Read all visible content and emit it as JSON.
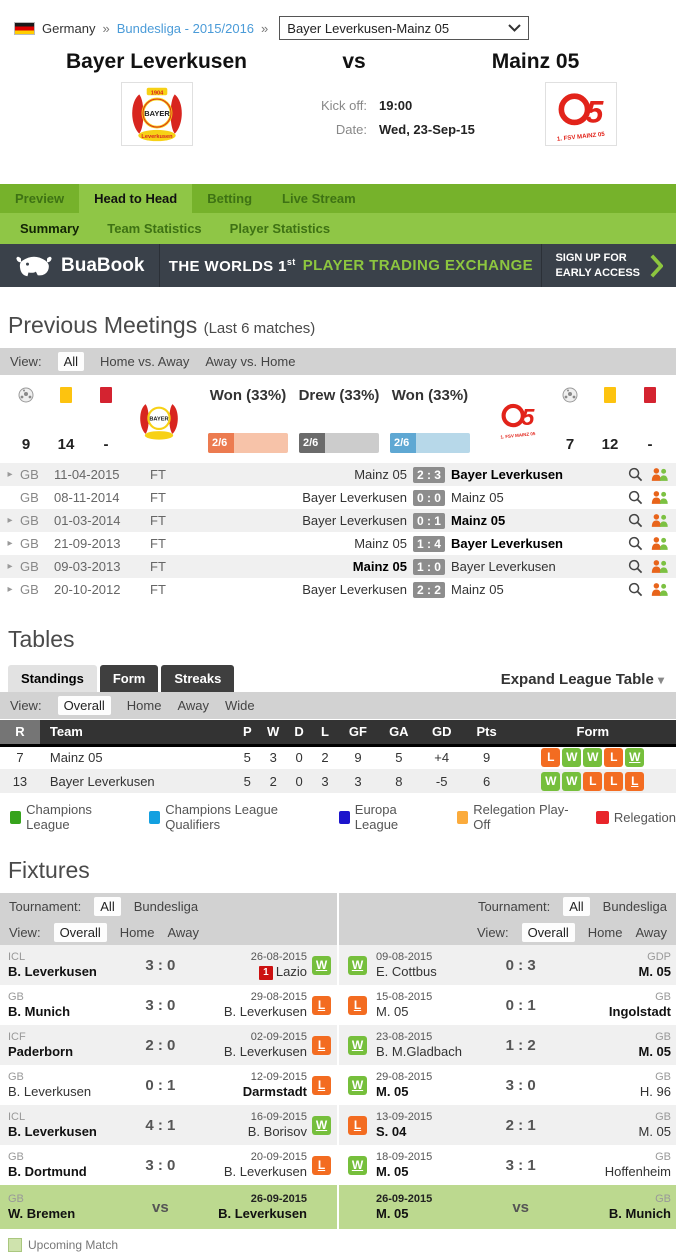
{
  "breadcrumb": {
    "country": "Germany",
    "separator": "»",
    "league": "Bundesliga - 2015/2016",
    "match_select": "Bayer Leverkusen-Mainz 05"
  },
  "match_header": {
    "home": "Bayer Leverkusen",
    "vs": "vs",
    "away": "Mainz 05",
    "kickoff_label": "Kick off:",
    "kickoff": "19:00",
    "date_label": "Date:",
    "date": "Wed, 23-Sep-15"
  },
  "tabs": {
    "main": [
      {
        "label": "Preview",
        "active": false
      },
      {
        "label": "Head to Head",
        "active": true
      },
      {
        "label": "Betting",
        "active": false
      },
      {
        "label": "Live Stream",
        "active": false
      }
    ],
    "sub": [
      {
        "label": "Summary",
        "active": true
      },
      {
        "label": "Team Statistics",
        "active": false
      },
      {
        "label": "Player Statistics",
        "active": false
      }
    ]
  },
  "banner": {
    "brand": "BuaBook",
    "headline_prefix": "THE WORLDS 1",
    "headline_sup": "st",
    "headline_highlight": "PLAYER TRADING EXCHANGE",
    "cta_line1": "SIGN UP FOR",
    "cta_line2": "EARLY ACCESS"
  },
  "previous_meetings": {
    "title": "Previous Meetings",
    "subtitle": "(Last 6 matches)",
    "view": {
      "label": "View:",
      "options": [
        {
          "label": "All",
          "selected": true
        },
        {
          "label": "Home vs. Away",
          "selected": false
        },
        {
          "label": "Away vs. Home",
          "selected": false
        }
      ]
    },
    "stats": {
      "home": {
        "goals": "9",
        "yellow_cards": "14",
        "red_cards": "-"
      },
      "away": {
        "goals": "7",
        "yellow_cards": "12",
        "red_cards": "-"
      }
    },
    "bars": [
      {
        "label": "Won (33%)",
        "value": "2/6",
        "pct": 33,
        "fill": "#ec7b50",
        "track": "#f7c3a9"
      },
      {
        "label": "Drew (33%)",
        "value": "2/6",
        "pct": 33,
        "fill": "#6b6b6b",
        "track": "#cccccc"
      },
      {
        "label": "Won (33%)",
        "value": "2/6",
        "pct": 33,
        "fill": "#5fa8d3",
        "track": "#b7d8e9"
      }
    ],
    "matches": [
      {
        "expand": true,
        "comp": "GB",
        "date": "11-04-2015",
        "status": "FT",
        "home": "Mainz 05",
        "score": "2 : 3",
        "away": "Bayer Leverkusen",
        "bold": "away"
      },
      {
        "expand": false,
        "comp": "GB",
        "date": "08-11-2014",
        "status": "FT",
        "home": "Bayer Leverkusen",
        "score": "0 : 0",
        "away": "Mainz 05",
        "bold": "none"
      },
      {
        "expand": true,
        "comp": "GB",
        "date": "01-03-2014",
        "status": "FT",
        "home": "Bayer Leverkusen",
        "score": "0 : 1",
        "away": "Mainz 05",
        "bold": "away"
      },
      {
        "expand": true,
        "comp": "GB",
        "date": "21-09-2013",
        "status": "FT",
        "home": "Mainz 05",
        "score": "1 : 4",
        "away": "Bayer Leverkusen",
        "bold": "away"
      },
      {
        "expand": true,
        "comp": "GB",
        "date": "09-03-2013",
        "status": "FT",
        "home": "Mainz 05",
        "score": "1 : 0",
        "away": "Bayer Leverkusen",
        "bold": "home"
      },
      {
        "expand": true,
        "comp": "GB",
        "date": "20-10-2012",
        "status": "FT",
        "home": "Bayer Leverkusen",
        "score": "2 : 2",
        "away": "Mainz 05",
        "bold": "none"
      }
    ]
  },
  "tables": {
    "title": "Tables",
    "tabs": [
      {
        "label": "Standings",
        "active": true
      },
      {
        "label": "Form",
        "active": false
      },
      {
        "label": "Streaks",
        "active": false
      }
    ],
    "expand_label": "Expand League Table",
    "view": {
      "label": "View:",
      "options": [
        {
          "label": "Overall",
          "selected": true
        },
        {
          "label": "Home",
          "selected": false
        },
        {
          "label": "Away",
          "selected": false
        },
        {
          "label": "Wide",
          "selected": false
        }
      ]
    },
    "standings": {
      "columns": [
        "R",
        "Team",
        "P",
        "W",
        "D",
        "L",
        "GF",
        "GA",
        "GD",
        "Pts",
        "Form"
      ],
      "rows": [
        {
          "rank": "7",
          "team": "Mainz 05",
          "p": "5",
          "w": "3",
          "d": "0",
          "l": "2",
          "gf": "9",
          "ga": "5",
          "gd": "+4",
          "pts": "9",
          "form": [
            {
              "r": "L"
            },
            {
              "r": "W"
            },
            {
              "r": "W"
            },
            {
              "r": "L"
            },
            {
              "r": "W",
              "last": true
            }
          ]
        },
        {
          "rank": "13",
          "team": "Bayer Leverkusen",
          "p": "5",
          "w": "2",
          "d": "0",
          "l": "3",
          "gf": "3",
          "ga": "8",
          "gd": "-5",
          "pts": "6",
          "form": [
            {
              "r": "W"
            },
            {
              "r": "W"
            },
            {
              "r": "L"
            },
            {
              "r": "L"
            },
            {
              "r": "L",
              "last": true
            }
          ]
        }
      ]
    },
    "legend": [
      {
        "label": "Champions League",
        "color": "#36a31c"
      },
      {
        "label": "Champions League Qualifiers",
        "color": "#13a0e0"
      },
      {
        "label": "Europa League",
        "color": "#1c14cc"
      },
      {
        "label": "Relegation Play-Off",
        "color": "#fbab3c"
      },
      {
        "label": "Relegation",
        "color": "#e8252a"
      }
    ]
  },
  "fixtures": {
    "title": "Fixtures",
    "upcoming_label": "Upcoming Match",
    "columns": [
      {
        "tournament_filter": {
          "label": "Tournament:",
          "options": [
            {
              "label": "All",
              "selected": true
            },
            {
              "label": "Bundesliga",
              "selected": false
            }
          ]
        },
        "view_filter": {
          "label": "View:",
          "options": [
            {
              "label": "Overall",
              "selected": true
            },
            {
              "label": "Home",
              "selected": false
            },
            {
              "label": "Away",
              "selected": false
            }
          ]
        },
        "rows": [
          {
            "comp": "ICL",
            "team1": "B. Leverkusen",
            "bold1": true,
            "score": "3 : 0",
            "date": "26-08-2015",
            "rank_badge": "1",
            "team2": "Lazio",
            "bold2": false,
            "result": "W"
          },
          {
            "comp": "GB",
            "team1": "B. Munich",
            "bold1": true,
            "score": "3 : 0",
            "date": "29-08-2015",
            "team2": "B. Leverkusen",
            "bold2": false,
            "result": "L"
          },
          {
            "comp": "ICF",
            "team1": "Paderborn",
            "bold1": true,
            "score": "2 : 0",
            "date": "02-09-2015",
            "team2": "B. Leverkusen",
            "bold2": false,
            "result": "L"
          },
          {
            "comp": "GB",
            "team1": "B. Leverkusen",
            "bold1": false,
            "score": "0 : 1",
            "date": "12-09-2015",
            "team2": "Darmstadt",
            "bold2": true,
            "result": "L"
          },
          {
            "comp": "ICL",
            "team1": "B. Leverkusen",
            "bold1": true,
            "score": "4 : 1",
            "date": "16-09-2015",
            "team2": "B. Borisov",
            "bold2": false,
            "result": "W"
          },
          {
            "comp": "GB",
            "team1": "B. Dortmund",
            "bold1": true,
            "score": "3 : 0",
            "date": "20-09-2015",
            "team2": "B. Leverkusen",
            "bold2": false,
            "result": "L"
          },
          {
            "comp": "GB",
            "team1": "W. Bremen",
            "bold1": true,
            "score": "vs",
            "date": "26-09-2015",
            "team2": "B. Leverkusen",
            "bold2": true,
            "upcoming": true
          }
        ]
      },
      {
        "tournament_filter": {
          "label": "Tournament:",
          "options": [
            {
              "label": "All",
              "selected": true
            },
            {
              "label": "Bundesliga",
              "selected": false
            }
          ]
        },
        "view_filter": {
          "label": "View:",
          "options": [
            {
              "label": "Overall",
              "selected": true
            },
            {
              "label": "Home",
              "selected": false
            },
            {
              "label": "Away",
              "selected": false
            }
          ]
        },
        "rows": [
          {
            "result": "W",
            "date": "09-08-2015",
            "team1": "E. Cottbus",
            "bold1": false,
            "score": "0 : 3",
            "comp": "GDP",
            "team2": "M. 05",
            "bold2": true
          },
          {
            "result": "L",
            "date": "15-08-2015",
            "team1": "M. 05",
            "bold1": false,
            "score": "0 : 1",
            "comp": "GB",
            "team2": "Ingolstadt",
            "bold2": true
          },
          {
            "result": "W",
            "date": "23-08-2015",
            "team1": "B. M.Gladbach",
            "bold1": false,
            "score": "1 : 2",
            "comp": "GB",
            "team2": "M. 05",
            "bold2": true
          },
          {
            "result": "W",
            "date": "29-08-2015",
            "team1": "M. 05",
            "bold1": true,
            "score": "3 : 0",
            "comp": "GB",
            "team2": "H. 96",
            "bold2": false
          },
          {
            "result": "L",
            "date": "13-09-2015",
            "team1": "S. 04",
            "bold1": true,
            "score": "2 : 1",
            "comp": "GB",
            "team2": "M. 05",
            "bold2": false
          },
          {
            "result": "W",
            "date": "18-09-2015",
            "team1": "M. 05",
            "bold1": true,
            "score": "3 : 1",
            "comp": "GB",
            "team2": "Hoffenheim",
            "bold2": false
          },
          {
            "date": "26-09-2015",
            "team1": "M. 05",
            "bold1": true,
            "score": "vs",
            "comp": "GB",
            "team2": "B. Munich",
            "bold2": true,
            "upcoming": true
          }
        ]
      }
    ]
  },
  "colors": {
    "tab_bar": "#76b22b",
    "tab_active": "#8fc646",
    "banner_bg": "#3a414a",
    "banner_green": "#8dc63f",
    "filter_bar": "#d2d2d2",
    "win_badge": "#76bf3c",
    "loss_badge": "#f36c21",
    "score_badge": "#8d8d8d",
    "upcoming_row": "#bcd98f"
  }
}
